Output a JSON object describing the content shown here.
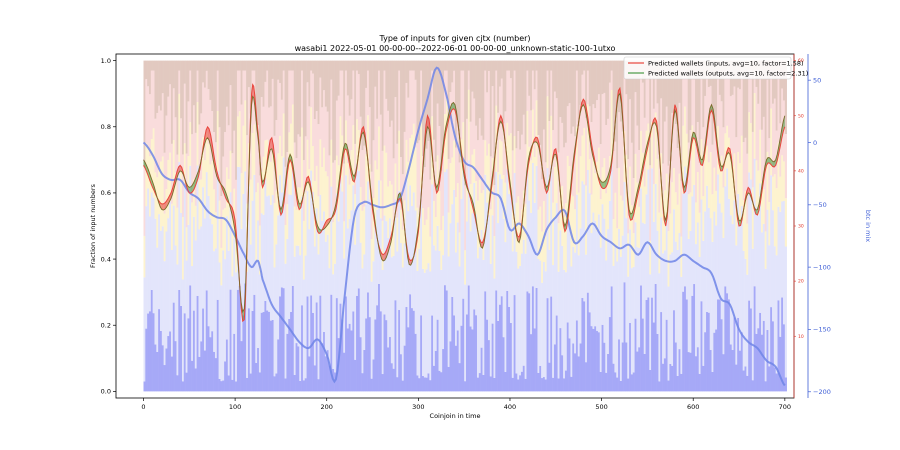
{
  "chart_data": {
    "type": "line",
    "title": "Type of inputs for given cjtx (number)",
    "subtitle": "wasabi1 2022-05-01 00-00-00--2022-06-01 00-00-00_unknown-static-100-1utxo",
    "xlabel": "Coinjoin in time",
    "ylabel": "Fraction of input numbers",
    "y2label": "btc in mix",
    "xlim": [
      -30,
      710
    ],
    "ylim": [
      -0.02,
      1.02
    ],
    "y1_right_lim": [
      0,
      60
    ],
    "y2lim": [
      -205,
      71
    ],
    "x_ticks": [
      "0",
      "100",
      "200",
      "300",
      "400",
      "500",
      "600",
      "700"
    ],
    "x_tick_values": [
      0,
      100,
      200,
      300,
      400,
      500,
      600,
      700
    ],
    "y_ticks": [
      "0.0",
      "0.2",
      "0.4",
      "0.6",
      "0.8",
      "1.0"
    ],
    "y_tick_values": [
      0.0,
      0.2,
      0.4,
      0.6,
      0.8,
      1.0
    ],
    "y1_right_ticks": [
      "10",
      "20",
      "30",
      "40",
      "50",
      "60"
    ],
    "y1_right_tick_values": [
      10,
      20,
      30,
      40,
      50,
      60
    ],
    "y2_ticks": [
      "50",
      "0",
      "−50",
      "−100",
      "−150",
      "−200"
    ],
    "y2_tick_values": [
      50,
      0,
      -50,
      -100,
      -150,
      -200
    ],
    "grid": false,
    "legend_position": "top-right",
    "series": [
      {
        "name": "Predicted wallets (inputs, avg=10, factor=1.58)",
        "color": "#e8453c",
        "axis": "right1",
        "x": [
          0,
          10,
          20,
          30,
          40,
          50,
          60,
          70,
          80,
          90,
          100,
          110,
          118,
          125,
          130,
          140,
          150,
          160,
          170,
          180,
          190,
          200,
          210,
          220,
          230,
          240,
          250,
          260,
          270,
          280,
          290,
          300,
          310,
          320,
          330,
          340,
          350,
          360,
          370,
          380,
          390,
          400,
          410,
          420,
          430,
          440,
          450,
          460,
          470,
          480,
          490,
          500,
          510,
          520,
          530,
          540,
          550,
          560,
          570,
          580,
          590,
          600,
          610,
          620,
          630,
          640,
          650,
          660,
          670,
          680,
          690,
          700
        ],
        "values": [
          41,
          37,
          34,
          36,
          41,
          36,
          39,
          48,
          40,
          35,
          31,
          13,
          54,
          47,
          37,
          46,
          32,
          42,
          33,
          39,
          29,
          31,
          33,
          44,
          38,
          48,
          33,
          25,
          28,
          35,
          24,
          29,
          50,
          36,
          47,
          51,
          40,
          33,
          27,
          37,
          50,
          37,
          28,
          41,
          46,
          36,
          44,
          29,
          42,
          53,
          44,
          37,
          40,
          55,
          32,
          36,
          44,
          49,
          30,
          52,
          36,
          46,
          41,
          51,
          40,
          44,
          30,
          37,
          32,
          41,
          41,
          48
        ]
      },
      {
        "name": "Predicted wallets (outputs, avg=10, factor=2.31)",
        "color": "#4a9a45",
        "axis": "right1",
        "x": [
          0,
          10,
          20,
          30,
          40,
          50,
          60,
          70,
          80,
          90,
          100,
          110,
          118,
          125,
          130,
          140,
          150,
          160,
          170,
          180,
          190,
          200,
          210,
          220,
          230,
          240,
          250,
          260,
          270,
          280,
          290,
          300,
          310,
          320,
          330,
          340,
          350,
          360,
          370,
          380,
          390,
          400,
          410,
          420,
          430,
          440,
          450,
          460,
          470,
          480,
          490,
          500,
          510,
          520,
          530,
          540,
          550,
          560,
          570,
          580,
          590,
          600,
          610,
          620,
          630,
          640,
          650,
          660,
          670,
          680,
          690,
          700
        ],
        "values": [
          42,
          38,
          33,
          35,
          40,
          37,
          40,
          46,
          39,
          36,
          29,
          15,
          52,
          46,
          38,
          44,
          33,
          43,
          34,
          38,
          30,
          30,
          34,
          45,
          39,
          47,
          34,
          24,
          27,
          36,
          23,
          30,
          48,
          37,
          48,
          52,
          39,
          34,
          26,
          38,
          49,
          38,
          27,
          42,
          45,
          37,
          43,
          30,
          43,
          52,
          43,
          38,
          41,
          54,
          33,
          37,
          45,
          48,
          31,
          51,
          37,
          47,
          42,
          52,
          41,
          43,
          31,
          36,
          33,
          42,
          42,
          50
        ]
      },
      {
        "name": "btc in mix",
        "color": "#6f85e6",
        "axis": "right2",
        "x": [
          0,
          10,
          20,
          30,
          40,
          50,
          60,
          70,
          80,
          90,
          100,
          110,
          118,
          125,
          130,
          140,
          150,
          160,
          170,
          180,
          190,
          200,
          210,
          220,
          230,
          240,
          250,
          260,
          270,
          280,
          290,
          300,
          310,
          320,
          330,
          340,
          350,
          360,
          370,
          380,
          390,
          400,
          410,
          420,
          430,
          440,
          450,
          460,
          470,
          480,
          490,
          500,
          510,
          520,
          530,
          540,
          550,
          560,
          570,
          580,
          590,
          600,
          610,
          620,
          630,
          640,
          650,
          660,
          670,
          680,
          690,
          700
        ],
        "values": [
          0,
          -10,
          -25,
          -30,
          -30,
          -40,
          -45,
          -55,
          -60,
          -62,
          -75,
          -90,
          -100,
          -95,
          -110,
          -130,
          -140,
          -150,
          -160,
          -165,
          -158,
          -170,
          -190,
          -120,
          -60,
          -48,
          -50,
          -52,
          -50,
          -45,
          -20,
          10,
          35,
          60,
          40,
          5,
          -15,
          -20,
          -30,
          -40,
          -45,
          -70,
          -65,
          -75,
          -90,
          -70,
          -60,
          -55,
          -80,
          -75,
          -65,
          -75,
          -80,
          -85,
          -82,
          -90,
          -80,
          -90,
          -95,
          -95,
          -90,
          -95,
          -100,
          -105,
          -125,
          -130,
          -150,
          -160,
          -165,
          -175,
          -180,
          -195
        ]
      }
    ]
  }
}
